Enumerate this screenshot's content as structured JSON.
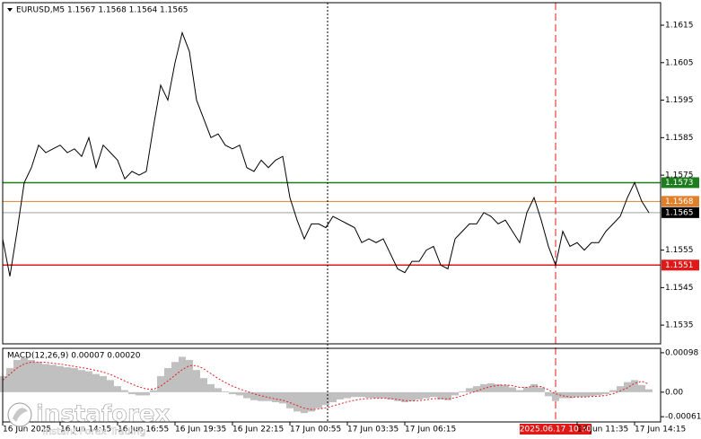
{
  "chart_data": [
    {
      "type": "line",
      "title": "EURUSD,M5 1.1567 1.1568 1.1564 1.1565",
      "color": "#000000",
      "categories": [
        "16 Jun 2025",
        null,
        null,
        null,
        null,
        null,
        null,
        null,
        "16 Jun 14:15",
        null,
        null,
        null,
        null,
        null,
        null,
        null,
        "16 Jun 16:55",
        null,
        null,
        null,
        null,
        null,
        null,
        null,
        "16 Jun 19:35",
        null,
        null,
        null,
        null,
        null,
        null,
        null,
        "16 Jun 22:15",
        null,
        null,
        null,
        null,
        null,
        null,
        null,
        "17 Jun 00:55",
        null,
        null,
        null,
        null,
        null,
        null,
        null,
        "17 Jun 03:35",
        null,
        null,
        null,
        null,
        null,
        null,
        null,
        "17 Jun 06:15",
        null,
        null,
        null,
        null,
        null,
        null,
        null,
        null,
        null,
        null,
        null,
        null,
        null,
        null,
        null,
        null,
        null,
        null,
        null,
        null,
        "2025.06.17 10:30",
        null,
        null,
        "17 Jun 11:35",
        null,
        null,
        null,
        null,
        null,
        null,
        null,
        "17 Jun 14:15",
        null,
        null
      ],
      "values": [
        1.1558,
        1.1548,
        1.156,
        1.1573,
        1.1577,
        1.1583,
        1.1581,
        1.1582,
        1.1583,
        1.1581,
        1.1582,
        1.158,
        1.1585,
        1.1577,
        1.1583,
        1.1581,
        1.1579,
        1.1574,
        1.1576,
        1.1575,
        1.1576,
        1.1588,
        1.1599,
        1.1595,
        1.1605,
        1.1613,
        1.1608,
        1.1595,
        1.159,
        1.1585,
        1.1586,
        1.1583,
        1.1582,
        1.1583,
        1.1577,
        1.1576,
        1.1579,
        1.1577,
        1.1579,
        1.158,
        1.1569,
        1.1563,
        1.1558,
        1.1562,
        1.1562,
        1.1561,
        1.1564,
        1.1563,
        1.1562,
        1.1561,
        1.1557,
        1.1558,
        1.1557,
        1.1558,
        1.1554,
        1.155,
        1.1549,
        1.1552,
        1.1552,
        1.1555,
        1.1556,
        1.1551,
        1.155,
        1.1558,
        1.156,
        1.1562,
        1.1562,
        1.1565,
        1.1564,
        1.1562,
        1.1563,
        1.156,
        1.1557,
        1.1565,
        1.1569,
        1.1563,
        1.1556,
        1.1551,
        1.156,
        1.1556,
        1.1557,
        1.1555,
        1.1557,
        1.1557,
        1.156,
        1.1562,
        1.1564,
        1.1569,
        1.1573,
        1.1568,
        1.1565
      ],
      "ylim": [
        1.153,
        1.1621
      ],
      "yticks": [
        1.1535,
        1.1545,
        1.1555,
        1.1575,
        1.1585,
        1.1595,
        1.1605,
        1.1615
      ],
      "levels": [
        {
          "value": 1.1573,
          "color": "#1e7d1e"
        },
        {
          "value": 1.1568,
          "color": "#e0802a"
        },
        {
          "value": 1.1565,
          "color": "#000000"
        },
        {
          "value": 1.1551,
          "color": "#e01818"
        }
      ]
    },
    {
      "type": "macd",
      "title": "MACD(12,26,9) 0.00007 0.00020",
      "histogram_color": "#c0c0c0",
      "signal_color": "#e02020",
      "histogram": [
        0.0004,
        0.0006,
        0.0008,
        0.00085,
        0.0008,
        0.00075,
        0.0007,
        0.00068,
        0.00065,
        0.00062,
        0.0006,
        0.00055,
        0.00052,
        0.00045,
        0.0004,
        0.0003,
        0.00015,
        5e-05,
        -5e-05,
        -8e-05,
        -8e-05,
        5e-05,
        0.0004,
        0.0006,
        0.00075,
        0.00088,
        0.0008,
        0.00055,
        0.00035,
        0.0002,
        0.0001,
        2e-05,
        -5e-05,
        -8e-05,
        -0.00015,
        -0.0002,
        -0.00022,
        -0.00022,
        -0.00025,
        -0.00028,
        -0.0004,
        -0.00048,
        -0.00052,
        -0.00048,
        -0.0004,
        -0.00032,
        -0.00025,
        -0.00018,
        -0.00015,
        -0.00012,
        -0.00012,
        -0.00014,
        -0.00015,
        -0.00015,
        -0.00018,
        -0.00022,
        -0.00025,
        -0.00022,
        -0.00018,
        -0.00015,
        -0.00012,
        -0.00018,
        -0.0002,
        -8e-05,
        2e-05,
        0.0001,
        0.00015,
        0.0002,
        0.00022,
        0.0002,
        0.00018,
        0.00012,
        5e-05,
        0.00012,
        0.0002,
        0.00012,
        -0.0001,
        -0.00022,
        -0.00015,
        -0.00015,
        -0.00012,
        -0.00012,
        -0.0001,
        -8e-05,
        -5e-05,
        5e-05,
        0.00015,
        0.00025,
        0.0003,
        0.00018,
        7e-05
      ],
      "signal": [
        0.0003,
        0.00045,
        0.0006,
        0.0007,
        0.00075,
        0.00075,
        0.00074,
        0.00072,
        0.0007,
        0.00067,
        0.00064,
        0.00061,
        0.00058,
        0.00054,
        0.0005,
        0.00044,
        0.00036,
        0.00028,
        0.0002,
        0.00013,
        8e-05,
        7e-05,
        0.00015,
        0.00028,
        0.00042,
        0.00056,
        0.00066,
        0.00066,
        0.00058,
        0.00046,
        0.00034,
        0.00024,
        0.00015,
        8e-05,
        2e-05,
        -4e-05,
        -9e-05,
        -0.00013,
        -0.00017,
        -0.0002,
        -0.00026,
        -0.00033,
        -0.0004,
        -0.00043,
        -0.00042,
        -0.00039,
        -0.00034,
        -0.00029,
        -0.00024,
        -0.0002,
        -0.00017,
        -0.00016,
        -0.00015,
        -0.00015,
        -0.00016,
        -0.00018,
        -0.00021,
        -0.00022,
        -0.00021,
        -0.00019,
        -0.00016,
        -0.00016,
        -0.00017,
        -0.00014,
        -9e-05,
        -3e-05,
        3e-05,
        9e-05,
        0.00014,
        0.00017,
        0.00018,
        0.00016,
        0.00012,
        0.00012,
        0.00015,
        0.00014,
        6e-05,
        -4e-05,
        -9e-05,
        -0.00012,
        -0.00012,
        -0.00012,
        -0.00011,
        -0.0001,
        -8e-05,
        -4e-05,
        3e-05,
        0.00011,
        0.00022,
        0.00027,
        0.0002
      ],
      "ylim": [
        -0.00074,
        0.00109
      ],
      "yticks": [
        0.00098,
        {
          "value": 0,
          "label": "0.00"
        },
        -0.00061
      ]
    }
  ],
  "watermark": {
    "brand": "instaforex",
    "tagline": "Instant Forex Trading"
  }
}
